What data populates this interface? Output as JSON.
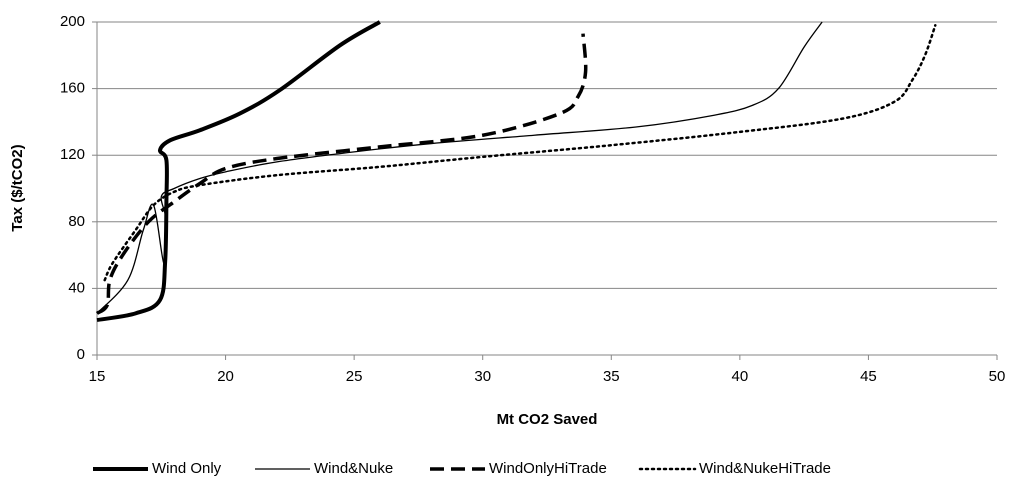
{
  "chart_data": {
    "type": "line",
    "x_label": "Mt CO2 Saved",
    "y_label": "Tax ($/tCO2)",
    "xlim": [
      15,
      50
    ],
    "xticks": [
      15,
      20,
      25,
      30,
      35,
      40,
      45,
      50
    ],
    "ylim": [
      0,
      200
    ],
    "yticks": [
      0,
      40,
      80,
      120,
      160,
      200
    ],
    "grid": true,
    "legend": "bottom",
    "series": [
      {
        "name": "Wind Only",
        "color": "#000000",
        "width": 4,
        "dash": "solid",
        "x": [
          15,
          16.5,
          17.45,
          17.65,
          17.7,
          17.7,
          17.45,
          17.85,
          19,
          20.55,
          22.1,
          24.45,
          26
        ],
        "values": [
          21,
          25,
          33,
          56,
          93,
          117,
          123,
          129,
          135,
          145,
          159,
          186,
          200
        ]
      },
      {
        "name": "Wind&Nuke",
        "color": "#000000",
        "width": 1.3,
        "dash": "solid",
        "x": [
          15,
          16.2,
          16.8,
          17.2,
          17.6,
          17.7,
          17.5,
          18,
          19,
          20,
          22,
          25,
          28,
          32,
          36,
          39,
          40.5,
          41.5,
          42.5,
          43.2
        ],
        "values": [
          25,
          45,
          75,
          90,
          55,
          80,
          95,
          100,
          106,
          110,
          116,
          122,
          127,
          132,
          137,
          144,
          150,
          160,
          185,
          200
        ]
      },
      {
        "name": "WindOnlyHiTrade",
        "color": "#000000",
        "width": 3.5,
        "dash": "dashed",
        "x": [
          15,
          15.4,
          15.5,
          16,
          17,
          18,
          19,
          20,
          22,
          26,
          30,
          33,
          33.7,
          34,
          33.9
        ],
        "values": [
          25,
          30,
          45,
          60,
          80,
          92,
          103,
          112,
          118,
          125,
          132,
          145,
          155,
          170,
          193
        ]
      },
      {
        "name": "Wind&NukeHiTrade",
        "color": "#000000",
        "width": 2.5,
        "dash": "dotted",
        "x": [
          15.3,
          15.6,
          16.5,
          17.2,
          18,
          19,
          22,
          26,
          30,
          35,
          40,
          44,
          46,
          46.7,
          47.2,
          47.6
        ],
        "values": [
          45,
          55,
          75,
          90,
          98,
          102,
          108,
          113,
          119,
          126,
          134,
          142,
          152,
          165,
          180,
          198
        ]
      }
    ]
  }
}
